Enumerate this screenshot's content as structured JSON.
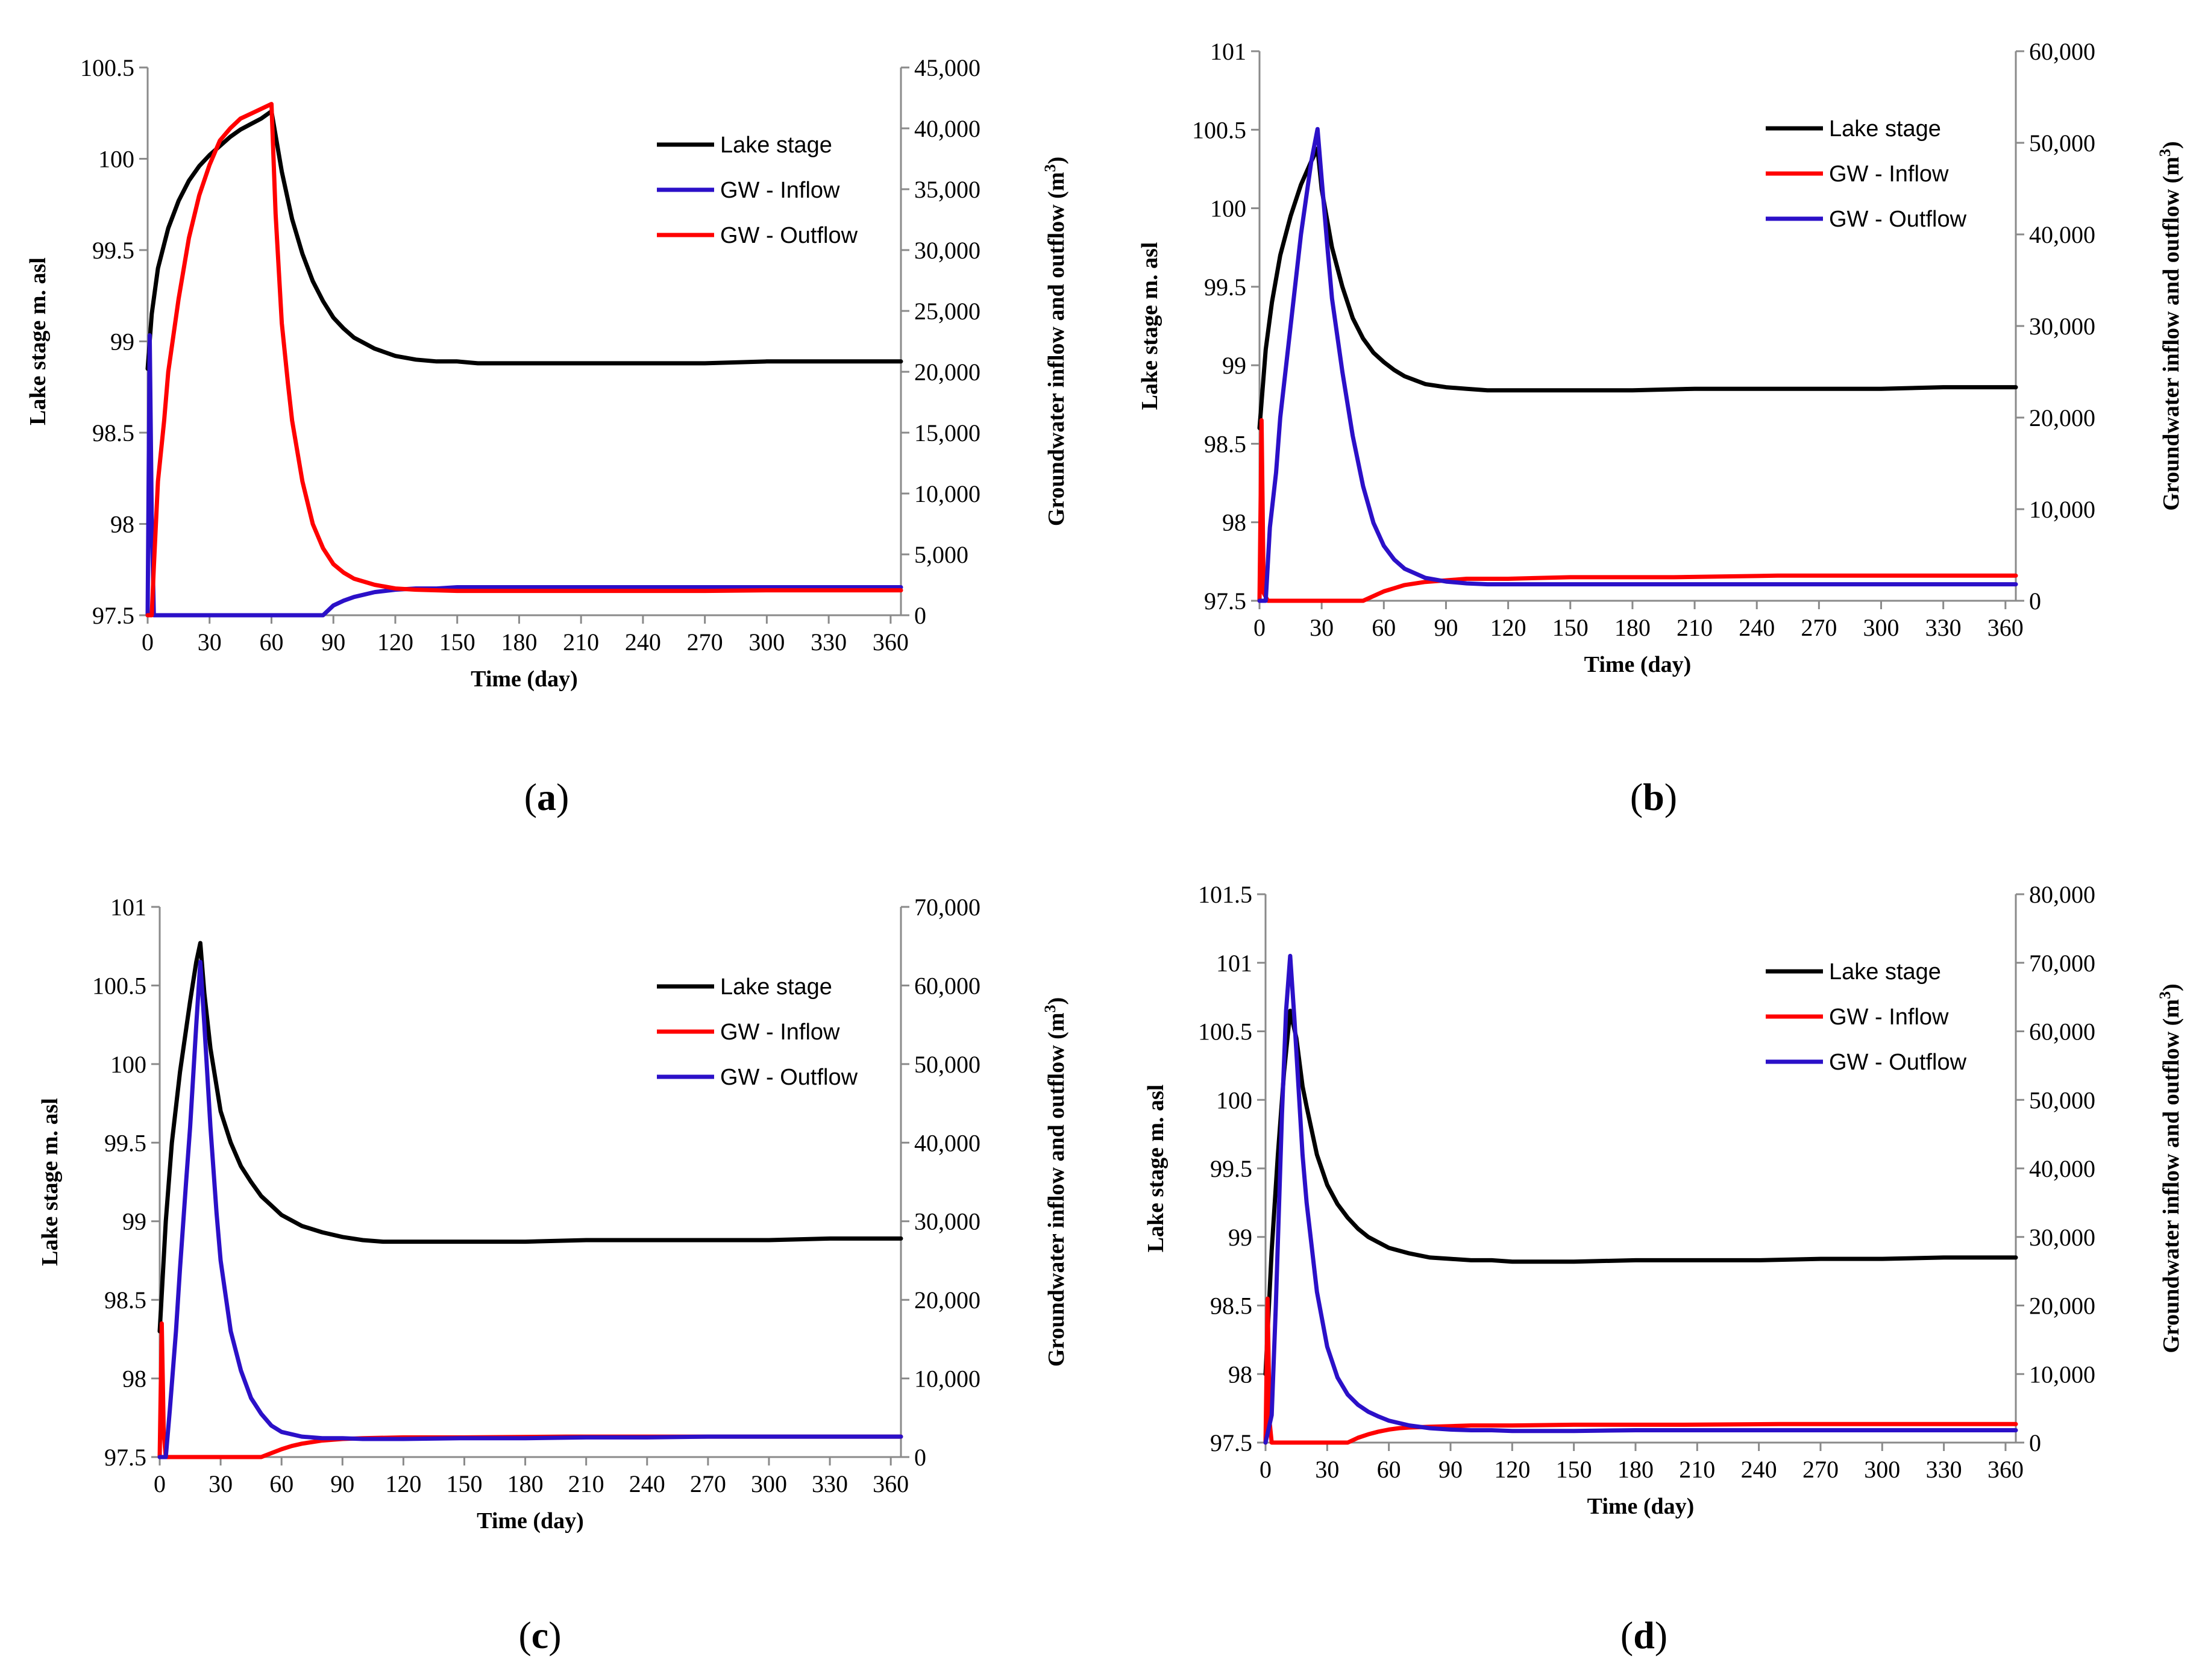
{
  "chart_data": [
    {
      "panel": "a",
      "type": "line",
      "xlabel": "Time (day)",
      "ylabel": "Lake stage m. asl",
      "y2label": "Groundwater inflow and outflow (m3)",
      "x_ticks": [
        "0",
        "30",
        "60",
        "90",
        "120",
        "150",
        "180",
        "210",
        "240",
        "270",
        "300",
        "330",
        "360"
      ],
      "xlim": [
        0,
        365
      ],
      "ylim": [
        97.5,
        100.5
      ],
      "y_ticks": [
        "100.5",
        "100",
        "99.5",
        "99",
        "98.5",
        "98",
        "97.5"
      ],
      "y2lim": [
        0,
        45000
      ],
      "y2_ticks": [
        "45,000",
        "40,000",
        "35,000",
        "30,000",
        "25,000",
        "20,000",
        "15,000",
        "10,000",
        "5,000",
        "0"
      ],
      "series": [
        {
          "name": "Lake stage",
          "color": "#000000",
          "axis": "left",
          "x": [
            0,
            2,
            5,
            10,
            15,
            20,
            25,
            30,
            35,
            40,
            45,
            50,
            55,
            60,
            65,
            70,
            75,
            80,
            85,
            90,
            95,
            100,
            110,
            120,
            130,
            140,
            150,
            160,
            180,
            210,
            240,
            270,
            300,
            330,
            365
          ],
          "y": [
            98.85,
            99.15,
            99.4,
            99.62,
            99.77,
            99.88,
            99.96,
            100.02,
            100.07,
            100.12,
            100.16,
            100.19,
            100.22,
            100.26,
            99.93,
            99.67,
            99.48,
            99.33,
            99.22,
            99.13,
            99.07,
            99.02,
            98.96,
            98.92,
            98.9,
            98.89,
            98.89,
            98.88,
            98.88,
            98.88,
            98.88,
            98.88,
            98.89,
            98.89,
            98.89
          ]
        },
        {
          "name": "GW - Inflow",
          "color": "#2b10c8",
          "axis": "right",
          "x": [
            0,
            1,
            2,
            3,
            5,
            10,
            20,
            40,
            60,
            80,
            85,
            90,
            95,
            100,
            110,
            120,
            130,
            140,
            150,
            180,
            210,
            240,
            270,
            300,
            330,
            365
          ],
          "y": [
            0,
            23000,
            8000,
            0,
            0,
            0,
            0,
            0,
            0,
            0,
            0,
            800,
            1200,
            1500,
            1900,
            2100,
            2200,
            2200,
            2300,
            2300,
            2300,
            2300,
            2300,
            2300,
            2300,
            2300
          ]
        },
        {
          "name": "GW - Outflow",
          "color": "#ff0000",
          "axis": "right",
          "x": [
            0,
            2,
            3,
            5,
            8,
            10,
            15,
            20,
            25,
            30,
            35,
            40,
            45,
            50,
            55,
            60,
            62,
            65,
            68,
            70,
            75,
            80,
            85,
            90,
            95,
            100,
            110,
            120,
            130,
            140,
            150,
            160,
            180,
            210,
            240,
            270,
            300,
            330,
            365
          ],
          "y": [
            0,
            0,
            4000,
            11000,
            16000,
            20000,
            26000,
            31000,
            34500,
            37000,
            39000,
            40000,
            40800,
            41200,
            41600,
            42000,
            33000,
            24000,
            19000,
            16000,
            11000,
            7500,
            5500,
            4200,
            3500,
            3000,
            2500,
            2200,
            2100,
            2050,
            2000,
            2000,
            2000,
            2000,
            2000,
            2000,
            2050,
            2050,
            2050
          ]
        }
      ],
      "legend": [
        "Lake stage",
        "GW - Inflow",
        "GW - Outflow"
      ],
      "caption_letter": "a"
    },
    {
      "panel": "b",
      "type": "line",
      "xlabel": "Time (day)",
      "ylabel": "Lake stage m. asl",
      "y2label": "Groundwater inflow and outflow (m3)",
      "x_ticks": [
        "0",
        "30",
        "60",
        "90",
        "120",
        "150",
        "180",
        "210",
        "240",
        "270",
        "300",
        "330",
        "360"
      ],
      "xlim": [
        0,
        365
      ],
      "ylim": [
        97.5,
        101
      ],
      "y_ticks": [
        "101",
        "100.5",
        "100",
        "99.5",
        "99",
        "98.5",
        "98",
        "97.5"
      ],
      "y2lim": [
        0,
        60000
      ],
      "y2_ticks": [
        "60,000",
        "50,000",
        "40,000",
        "30,000",
        "20,000",
        "10,000",
        "0"
      ],
      "series": [
        {
          "name": "Lake stage",
          "color": "#000000",
          "axis": "left",
          "x": [
            0,
            3,
            6,
            10,
            15,
            20,
            25,
            28,
            30,
            35,
            40,
            45,
            50,
            55,
            60,
            65,
            70,
            80,
            90,
            100,
            110,
            120,
            150,
            180,
            210,
            240,
            270,
            300,
            330,
            365
          ],
          "y": [
            98.6,
            99.1,
            99.4,
            99.7,
            99.95,
            100.15,
            100.3,
            100.38,
            100.12,
            99.75,
            99.5,
            99.3,
            99.17,
            99.08,
            99.02,
            98.97,
            98.93,
            98.88,
            98.86,
            98.85,
            98.84,
            98.84,
            98.84,
            98.84,
            98.85,
            98.85,
            98.85,
            98.85,
            98.86,
            98.86
          ]
        },
        {
          "name": "GW - Inflow",
          "color": "#ff0000",
          "axis": "left",
          "x": [
            0,
            1,
            2,
            4,
            10,
            20,
            30,
            40,
            50,
            55,
            60,
            65,
            70,
            80,
            90,
            100,
            120,
            150,
            200,
            250,
            300,
            365
          ],
          "y": [
            97.5,
            98.65,
            97.55,
            97.5,
            97.5,
            97.5,
            97.5,
            97.5,
            97.5,
            97.53,
            97.56,
            97.58,
            97.6,
            97.62,
            97.63,
            97.64,
            97.64,
            97.65,
            97.65,
            97.66,
            97.66,
            97.66
          ]
        },
        {
          "name": "GW - Outflow",
          "color": "#2b10c8",
          "axis": "right",
          "x": [
            0,
            3,
            5,
            8,
            10,
            15,
            20,
            25,
            28,
            30,
            33,
            35,
            40,
            45,
            50,
            55,
            60,
            65,
            70,
            80,
            90,
            100,
            110,
            120,
            150,
            180,
            210,
            240,
            270,
            300,
            330,
            365
          ],
          "y": [
            0,
            0,
            8000,
            14000,
            20000,
            30000,
            40000,
            48000,
            51500,
            46000,
            38000,
            33000,
            25000,
            18000,
            12500,
            8500,
            6000,
            4500,
            3500,
            2500,
            2100,
            1900,
            1800,
            1800,
            1800,
            1800,
            1800,
            1800,
            1800,
            1800,
            1800,
            1800
          ]
        }
      ],
      "legend": [
        "Lake stage",
        "GW - Inflow",
        "GW - Outflow"
      ],
      "caption_letter": "b"
    },
    {
      "panel": "c",
      "type": "line",
      "xlabel": "Time (day)",
      "ylabel": "Lake stage m. asl",
      "y2label": "Groundwater inflow and outflow (m3)",
      "x_ticks": [
        "0",
        "30",
        "60",
        "90",
        "120",
        "150",
        "180",
        "210",
        "240",
        "270",
        "300",
        "330",
        "360"
      ],
      "xlim": [
        0,
        365
      ],
      "ylim": [
        97.5,
        101
      ],
      "y_ticks": [
        "101",
        "100.5",
        "100",
        "99.5",
        "99",
        "98.5",
        "98",
        "97.5"
      ],
      "y2lim": [
        0,
        70000
      ],
      "y2_ticks": [
        "70,000",
        "60,000",
        "50,000",
        "40,000",
        "30,000",
        "20,000",
        "10,000",
        "0"
      ],
      "series": [
        {
          "name": "Lake stage",
          "color": "#000000",
          "axis": "left",
          "x": [
            0,
            3,
            6,
            10,
            15,
            18,
            20,
            22,
            25,
            30,
            35,
            40,
            45,
            50,
            55,
            60,
            70,
            80,
            90,
            100,
            110,
            120,
            150,
            180,
            210,
            240,
            270,
            300,
            330,
            365
          ],
          "y": [
            98.3,
            99.0,
            99.5,
            99.95,
            100.4,
            100.65,
            100.77,
            100.45,
            100.1,
            99.7,
            99.5,
            99.35,
            99.25,
            99.16,
            99.1,
            99.04,
            98.97,
            98.93,
            98.9,
            98.88,
            98.87,
            98.87,
            98.87,
            98.87,
            98.88,
            98.88,
            98.88,
            98.88,
            98.89,
            98.89
          ]
        },
        {
          "name": "GW - Inflow",
          "color": "#ff0000",
          "axis": "right",
          "x": [
            0,
            1,
            2,
            3,
            10,
            20,
            30,
            40,
            50,
            55,
            60,
            65,
            70,
            80,
            90,
            100,
            120,
            150,
            200,
            250,
            300,
            365
          ],
          "y": [
            0,
            17000,
            3000,
            0,
            0,
            0,
            0,
            0,
            0,
            500,
            1000,
            1400,
            1700,
            2100,
            2300,
            2400,
            2500,
            2500,
            2600,
            2600,
            2600,
            2600
          ]
        },
        {
          "name": "GW - Outflow",
          "color": "#2b10c8",
          "axis": "right",
          "x": [
            0,
            3,
            5,
            8,
            10,
            13,
            15,
            18,
            20,
            22,
            25,
            28,
            30,
            35,
            40,
            45,
            50,
            55,
            60,
            70,
            80,
            90,
            100,
            110,
            120,
            150,
            180,
            210,
            240,
            270,
            300,
            330,
            365
          ],
          "y": [
            0,
            0,
            6000,
            16000,
            24000,
            35000,
            42000,
            55000,
            63000,
            55000,
            42000,
            31000,
            25000,
            16000,
            11000,
            7500,
            5500,
            4000,
            3200,
            2600,
            2400,
            2400,
            2300,
            2300,
            2300,
            2400,
            2400,
            2500,
            2500,
            2600,
            2600,
            2600,
            2600
          ]
        }
      ],
      "legend": [
        "Lake stage",
        "GW - Inflow",
        "GW - Outflow"
      ],
      "caption_letter": "c"
    },
    {
      "panel": "d",
      "type": "line",
      "xlabel": "Time (day)",
      "ylabel": "Lake stage m. asl",
      "y2label": "Groundwater inflow and outflow (m3)",
      "x_ticks": [
        "0",
        "30",
        "60",
        "90",
        "120",
        "150",
        "180",
        "210",
        "240",
        "270",
        "300",
        "330",
        "360"
      ],
      "xlim": [
        0,
        365
      ],
      "ylim": [
        97.5,
        101.5
      ],
      "y_ticks": [
        "101.5",
        "101",
        "100.5",
        "100",
        "99.5",
        "99",
        "98.5",
        "98",
        "97.5"
      ],
      "y2lim": [
        0,
        80000
      ],
      "y2_ticks": [
        "80,000",
        "70,000",
        "60,000",
        "50,000",
        "40,000",
        "30,000",
        "20,000",
        "10,000",
        "0"
      ],
      "series": [
        {
          "name": "Lake stage",
          "color": "#000000",
          "axis": "left",
          "x": [
            0,
            3,
            6,
            9,
            12,
            15,
            18,
            20,
            25,
            30,
            35,
            40,
            45,
            50,
            55,
            60,
            70,
            80,
            90,
            100,
            110,
            120,
            130,
            150,
            180,
            210,
            240,
            270,
            300,
            330,
            365
          ],
          "y": [
            98.0,
            98.9,
            99.6,
            100.2,
            100.65,
            100.45,
            100.1,
            99.95,
            99.6,
            99.38,
            99.24,
            99.14,
            99.06,
            99.0,
            98.96,
            98.92,
            98.88,
            98.85,
            98.84,
            98.83,
            98.83,
            98.82,
            98.82,
            98.82,
            98.83,
            98.83,
            98.83,
            98.84,
            98.84,
            98.85,
            98.85
          ]
        },
        {
          "name": "GW - Inflow",
          "color": "#ff0000",
          "axis": "right",
          "x": [
            0,
            1,
            2,
            3,
            10,
            20,
            30,
            40,
            45,
            50,
            55,
            60,
            65,
            70,
            80,
            90,
            100,
            120,
            150,
            200,
            250,
            300,
            365
          ],
          "y": [
            0,
            21000,
            3000,
            0,
            0,
            0,
            0,
            0,
            700,
            1200,
            1600,
            1900,
            2100,
            2200,
            2300,
            2400,
            2500,
            2500,
            2600,
            2600,
            2700,
            2700,
            2700
          ]
        },
        {
          "name": "GW - Outflow",
          "color": "#2b10c8",
          "axis": "right",
          "x": [
            0,
            3,
            5,
            8,
            10,
            12,
            14,
            16,
            18,
            20,
            25,
            30,
            35,
            40,
            45,
            50,
            55,
            60,
            70,
            80,
            90,
            100,
            110,
            120,
            130,
            150,
            180,
            210,
            240,
            270,
            300,
            330,
            365
          ],
          "y": [
            0,
            4000,
            20000,
            48000,
            63000,
            71000,
            62000,
            52000,
            42000,
            35000,
            22000,
            14000,
            9500,
            7000,
            5500,
            4500,
            3800,
            3200,
            2500,
            2100,
            1900,
            1800,
            1800,
            1700,
            1700,
            1700,
            1800,
            1800,
            1800,
            1800,
            1800,
            1800,
            1800
          ]
        }
      ],
      "legend": [
        "Lake stage",
        "GW - Inflow",
        "GW - Outflow"
      ],
      "caption_letter": "d"
    }
  ]
}
